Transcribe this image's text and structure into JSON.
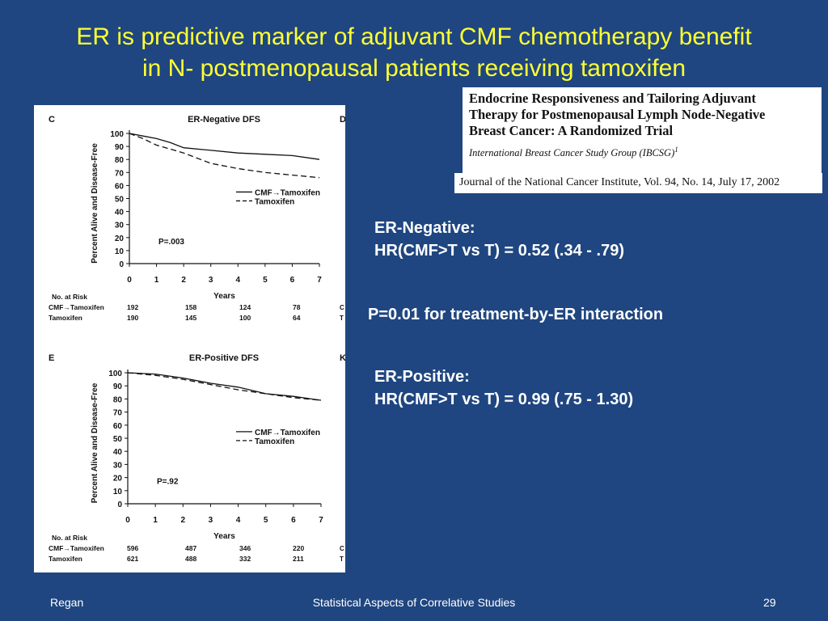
{
  "slide": {
    "title_line1": "ER is predictive marker of adjuvant CMF chemotherapy benefit",
    "title_line2": "in N- postmenopausal patients receiving tamoxifen",
    "citation": {
      "title_line1": "Endocrine Responsiveness and Tailoring Adjuvant",
      "title_line2": "Therapy for Postmenopausal Lymph Node-Negative",
      "title_line3": "Breast Cancer: A Randomized Trial",
      "group": "International Breast Cancer Study Group (IBCSG)",
      "group_sup": "1",
      "journal": "Journal of the National Cancer Institute, Vol. 94, No. 14, July 17, 2002"
    },
    "er_negative": {
      "label": "ER-Negative:",
      "hr": "HR(CMF>T vs T) = 0.52 (.34 - .79)"
    },
    "interaction": "P=0.01 for treatment-by-ER interaction",
    "er_positive": {
      "label": "ER-Positive:",
      "hr": "HR(CMF>T vs T) = 0.99 (.75 - 1.30)"
    },
    "footer": {
      "author": "Regan",
      "center": "Statistical Aspects of Correlative Studies",
      "page": "29"
    },
    "colors": {
      "background": "#1f4680",
      "title": "#ffff33",
      "text": "#ffffff"
    }
  },
  "chart_data": [
    {
      "type": "line",
      "panel_letter": "C",
      "side_letter": "D",
      "title": "ER-Negative DFS",
      "ylabel": "Percent Alive and Disease-Free",
      "xlabel": "Years",
      "x_ticks": [
        "0",
        "1",
        "2",
        "3",
        "4",
        "5",
        "6",
        "7"
      ],
      "y_ticks": [
        "100",
        "90",
        "80",
        "70",
        "60",
        "50",
        "40",
        "30",
        "20",
        "10",
        "0"
      ],
      "xlim": [
        0,
        7
      ],
      "ylim": [
        0,
        100
      ],
      "pvalue": "P=.003",
      "series": [
        {
          "name": "CMF→Tamoxifen",
          "style": "solid",
          "x": [
            0,
            0.5,
            1,
            1.5,
            2,
            3,
            4,
            5,
            6,
            7
          ],
          "y": [
            100,
            98,
            96,
            93,
            89,
            87,
            85,
            84,
            83,
            80
          ]
        },
        {
          "name": "Tamoxifen",
          "style": "dashed",
          "x": [
            0,
            0.5,
            1,
            1.5,
            2,
            2.5,
            3,
            4,
            5,
            6,
            7
          ],
          "y": [
            100,
            96,
            91,
            88,
            85,
            81,
            77,
            73,
            70,
            68,
            66
          ]
        }
      ],
      "risk_table": {
        "header": "No. at Risk",
        "rows": [
          {
            "label": "CMF→Tamoxifen",
            "values": [
              "192",
              "158",
              "124",
              "78"
            ]
          },
          {
            "label": "Tamoxifen",
            "values": [
              "190",
              "145",
              "100",
              "64"
            ]
          }
        ],
        "side_labels": [
          "C",
          "T"
        ]
      }
    },
    {
      "type": "line",
      "panel_letter": "E",
      "side_letter": "K",
      "title": "ER-Positive DFS",
      "ylabel": "Percent Alive and Disease-Free",
      "xlabel": "Years",
      "x_ticks": [
        "0",
        "1",
        "2",
        "3",
        "4",
        "5",
        "6",
        "7"
      ],
      "y_ticks": [
        "100",
        "90",
        "80",
        "70",
        "60",
        "50",
        "40",
        "30",
        "20",
        "10",
        "0"
      ],
      "xlim": [
        0,
        7
      ],
      "ylim": [
        0,
        100
      ],
      "pvalue": "P=.92",
      "series": [
        {
          "name": "CMF→Tamoxifen",
          "style": "solid",
          "x": [
            0,
            1,
            2,
            3,
            4,
            5,
            6,
            7
          ],
          "y": [
            100,
            99,
            96,
            92,
            89,
            84,
            82,
            79
          ]
        },
        {
          "name": "Tamoxifen",
          "style": "dashed",
          "x": [
            0,
            1,
            2,
            3,
            4,
            5,
            6,
            7
          ],
          "y": [
            100,
            98,
            95,
            91,
            87,
            84,
            81,
            79
          ]
        }
      ],
      "risk_table": {
        "header": "No. at Risk",
        "rows": [
          {
            "label": "CMF→Tamoxifen",
            "values": [
              "596",
              "487",
              "346",
              "220"
            ]
          },
          {
            "label": "Tamoxifen",
            "values": [
              "621",
              "488",
              "332",
              "211"
            ]
          }
        ],
        "side_labels": [
          "C",
          "T"
        ]
      }
    }
  ]
}
